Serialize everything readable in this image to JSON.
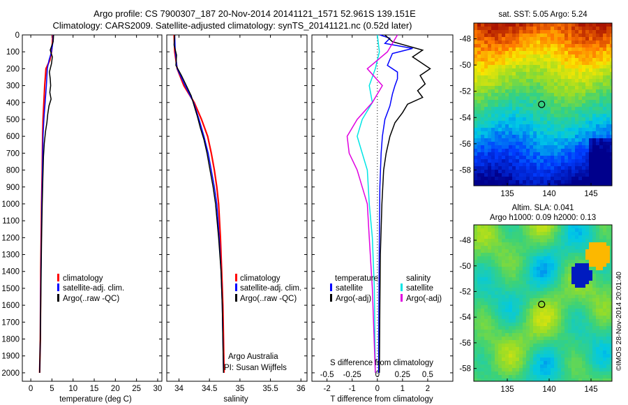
{
  "header": {
    "line1": "Argo profile: CS 7900307_187 20-Nov-2014 20141121_1571 52.961S 139.151E",
    "line2": "Climatology: CARS2009. Satellite-adjusted climatology: synTS_20141121.nc (0.52d later)"
  },
  "colors": {
    "climatology": "#ff0000",
    "satellite": "#0000ff",
    "argo": "#000000",
    "cyan": "#00e5e5",
    "magenta": "#e000e0"
  },
  "chart_data": [
    {
      "type": "line",
      "name": "temperature-profile",
      "xlabel": "temperature (deg C)",
      "ylabel": "",
      "xlim": [
        -2,
        31
      ],
      "ylim": [
        2050,
        0
      ],
      "xticks": [
        0,
        5,
        10,
        15,
        20,
        25,
        30
      ],
      "yticks": [
        0,
        100,
        200,
        300,
        400,
        500,
        600,
        700,
        800,
        900,
        1000,
        1100,
        1200,
        1300,
        1400,
        1500,
        1600,
        1700,
        1800,
        1900,
        2000
      ],
      "legend": [
        "climatology",
        "satellite-adj. clim.",
        "Argo(..raw -QC)"
      ],
      "series": [
        {
          "name": "climatology",
          "color": "#ff0000",
          "points": [
            [
              5.2,
              0
            ],
            [
              5.1,
              50
            ],
            [
              4.9,
              100
            ],
            [
              4.5,
              150
            ],
            [
              3.6,
              200
            ],
            [
              3.3,
              300
            ],
            [
              3.1,
              400
            ],
            [
              2.9,
              500
            ],
            [
              2.8,
              600
            ],
            [
              2.7,
              800
            ],
            [
              2.55,
              1000
            ],
            [
              2.45,
              1200
            ],
            [
              2.35,
              1400
            ],
            [
              2.3,
              1600
            ],
            [
              2.25,
              1800
            ],
            [
              2.1,
              2000
            ]
          ]
        },
        {
          "name": "satellite-adj. clim.",
          "color": "#0000ff",
          "points": [
            [
              5.3,
              0
            ],
            [
              5.2,
              50
            ],
            [
              4.9,
              100
            ],
            [
              4.3,
              150
            ],
            [
              3.9,
              200
            ],
            [
              3.7,
              300
            ],
            [
              3.4,
              400
            ],
            [
              3.1,
              500
            ],
            [
              2.9,
              600
            ],
            [
              2.75,
              800
            ],
            [
              2.6,
              1000
            ],
            [
              2.5,
              1200
            ],
            [
              2.4,
              1400
            ],
            [
              2.3,
              1600
            ],
            [
              2.25,
              1800
            ],
            [
              2.1,
              2000
            ]
          ]
        },
        {
          "name": "Argo(..raw -QC)",
          "color": "#000000",
          "points": [
            [
              5.4,
              0
            ],
            [
              5.3,
              40
            ],
            [
              4.6,
              90
            ],
            [
              5.1,
              130
            ],
            [
              4.9,
              170
            ],
            [
              4.4,
              220
            ],
            [
              4.6,
              260
            ],
            [
              4.7,
              300
            ],
            [
              4.5,
              340
            ],
            [
              4.8,
              380
            ],
            [
              4.3,
              420
            ],
            [
              4.0,
              470
            ],
            [
              3.8,
              520
            ],
            [
              3.5,
              570
            ],
            [
              3.2,
              640
            ],
            [
              3.0,
              720
            ],
            [
              2.85,
              850
            ],
            [
              2.7,
              1000
            ],
            [
              2.55,
              1200
            ],
            [
              2.45,
              1400
            ],
            [
              2.35,
              1600
            ],
            [
              2.25,
              1800
            ],
            [
              2.1,
              2000
            ]
          ]
        }
      ]
    },
    {
      "type": "line",
      "name": "salinity-profile",
      "xlabel": "salinity",
      "xlim": [
        33.8,
        36.1
      ],
      "ylim": [
        2050,
        0
      ],
      "xticks": [
        34,
        34.5,
        35,
        35.5,
        36
      ],
      "legend": [
        "climatology",
        "satellite-adj. clim.",
        "Argo(..raw -QC)"
      ],
      "annotation": [
        "Argo Australia",
        "PI: Susan Wijffels"
      ],
      "series": [
        {
          "name": "climatology",
          "color": "#ff0000",
          "points": [
            [
              33.92,
              0
            ],
            [
              33.93,
              100
            ],
            [
              33.97,
              200
            ],
            [
              34.08,
              300
            ],
            [
              34.25,
              400
            ],
            [
              34.37,
              500
            ],
            [
              34.47,
              600
            ],
            [
              34.53,
              700
            ],
            [
              34.58,
              800
            ],
            [
              34.62,
              900
            ],
            [
              34.65,
              1000
            ],
            [
              34.68,
              1200
            ],
            [
              34.7,
              1400
            ],
            [
              34.72,
              1600
            ],
            [
              34.73,
              1800
            ],
            [
              34.74,
              2000
            ]
          ]
        },
        {
          "name": "satellite-adj. clim.",
          "color": "#0000ff",
          "points": [
            [
              33.93,
              0
            ],
            [
              33.94,
              100
            ],
            [
              33.97,
              200
            ],
            [
              34.1,
              300
            ],
            [
              34.24,
              400
            ],
            [
              34.33,
              500
            ],
            [
              34.41,
              600
            ],
            [
              34.48,
              700
            ],
            [
              34.53,
              800
            ],
            [
              34.58,
              900
            ],
            [
              34.62,
              1000
            ],
            [
              34.66,
              1200
            ],
            [
              34.69,
              1400
            ],
            [
              34.71,
              1600
            ],
            [
              34.72,
              1800
            ],
            [
              34.73,
              2000
            ]
          ]
        },
        {
          "name": "Argo(..raw -QC)",
          "color": "#000000",
          "points": [
            [
              33.93,
              0
            ],
            [
              33.92,
              60
            ],
            [
              33.96,
              120
            ],
            [
              33.95,
              180
            ],
            [
              34.04,
              240
            ],
            [
              34.12,
              300
            ],
            [
              34.2,
              360
            ],
            [
              34.25,
              420
            ],
            [
              34.3,
              480
            ],
            [
              34.35,
              550
            ],
            [
              34.41,
              620
            ],
            [
              34.46,
              700
            ],
            [
              34.51,
              800
            ],
            [
              34.56,
              900
            ],
            [
              34.6,
              1000
            ],
            [
              34.65,
              1200
            ],
            [
              34.69,
              1400
            ],
            [
              34.71,
              1600
            ],
            [
              34.72,
              1800
            ],
            [
              34.73,
              2000
            ]
          ]
        }
      ]
    },
    {
      "type": "line",
      "name": "difference-profile",
      "xlabel": "T difference from climatology",
      "xlabel_top": "S difference from climatology",
      "xlim": [
        -2.6,
        3.0
      ],
      "ylim": [
        2050,
        0
      ],
      "xticks": [
        -2,
        -1,
        0,
        1,
        2
      ],
      "xticks_top": [
        "-0.5",
        "-0.25",
        "0",
        "0.25",
        "0.5"
      ],
      "legend_left_title": "temperature",
      "legend_right_title": "salinity",
      "legend": [
        "satellite",
        "Argo(-adj)",
        "satellite",
        "Argo(-adj)"
      ],
      "series": [
        {
          "name": "T satellite",
          "color": "#0000ff",
          "points": [
            [
              0.1,
              0
            ],
            [
              0.5,
              20
            ],
            [
              0.3,
              50
            ],
            [
              1.4,
              80
            ],
            [
              0.6,
              110
            ],
            [
              0.4,
              180
            ],
            [
              0.8,
              220
            ],
            [
              0.8,
              260
            ],
            [
              0.7,
              300
            ],
            [
              0.6,
              350
            ],
            [
              0.5,
              420
            ],
            [
              0.3,
              500
            ],
            [
              0.2,
              600
            ],
            [
              0.15,
              700
            ],
            [
              0.1,
              900
            ],
            [
              0.08,
              1200
            ],
            [
              0.06,
              1600
            ],
            [
              0.05,
              2000
            ]
          ]
        },
        {
          "name": "T Argo(-adj)",
          "color": "#000000",
          "points": [
            [
              0.3,
              0
            ],
            [
              0.6,
              40
            ],
            [
              1.8,
              90
            ],
            [
              1.4,
              130
            ],
            [
              2.1,
              200
            ],
            [
              1.7,
              240
            ],
            [
              1.9,
              290
            ],
            [
              1.6,
              330
            ],
            [
              1.8,
              370
            ],
            [
              1.2,
              410
            ],
            [
              1.0,
              460
            ],
            [
              0.7,
              520
            ],
            [
              0.5,
              600
            ],
            [
              0.35,
              700
            ],
            [
              0.25,
              800
            ],
            [
              0.18,
              1000
            ],
            [
              0.12,
              1300
            ],
            [
              0.1,
              1600
            ],
            [
              0.08,
              2000
            ]
          ]
        },
        {
          "name": "S satellite",
          "color": "#00e5e5",
          "points": [
            [
              0.0,
              0
            ],
            [
              0.02,
              100
            ],
            [
              -0.02,
              200
            ],
            [
              -0.08,
              300
            ],
            [
              -0.05,
              400
            ],
            [
              -0.15,
              500
            ],
            [
              -0.2,
              600
            ],
            [
              -0.15,
              700
            ],
            [
              -0.1,
              800
            ],
            [
              -0.08,
              1000
            ],
            [
              -0.05,
              1200
            ],
            [
              -0.03,
              1500
            ],
            [
              -0.02,
              2000
            ]
          ]
        },
        {
          "name": "S Argo(-adj)",
          "color": "#e000e0",
          "points": [
            [
              0.2,
              0
            ],
            [
              0.1,
              100
            ],
            [
              -0.1,
              200
            ],
            [
              0.05,
              300
            ],
            [
              -0.05,
              400
            ],
            [
              -0.2,
              500
            ],
            [
              -0.3,
              600
            ],
            [
              -0.28,
              700
            ],
            [
              -0.2,
              800
            ],
            [
              -0.15,
              900
            ],
            [
              -0.1,
              1000
            ],
            [
              -0.08,
              1200
            ],
            [
              -0.05,
              1500
            ],
            [
              -0.02,
              2000
            ]
          ]
        }
      ]
    },
    {
      "type": "heatmap",
      "name": "sst-map",
      "title": "sat. SST: 5.05 Argo: 5.24",
      "xticks": [
        135,
        140,
        145
      ],
      "yticks": [
        -48,
        -50,
        -52,
        -54,
        -56,
        -58
      ],
      "xlim": [
        131,
        147.5
      ],
      "ylim": [
        -59.2,
        -46.8
      ],
      "marker": [
        139.1,
        -53.0
      ]
    },
    {
      "type": "heatmap",
      "name": "sla-map",
      "title_line1": "Altim. SLA: 0.041",
      "title_line2": "Argo h1000: 0.09 h2000: 0.13",
      "xticks": [
        135,
        140,
        145
      ],
      "yticks": [
        -48,
        -50,
        -52,
        -54,
        -56,
        -58
      ],
      "xlim": [
        131,
        147.5
      ],
      "ylim": [
        -59.0,
        -46.8
      ],
      "marker": [
        139.1,
        -53.0
      ]
    }
  ],
  "credit": "©IMOS 28-Nov-2014 20:01:40"
}
